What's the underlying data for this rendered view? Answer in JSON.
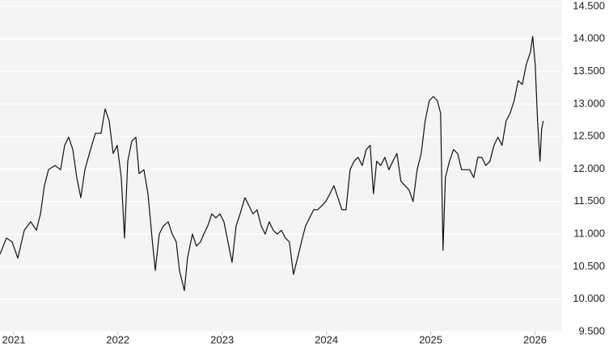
{
  "chart_data": {
    "type": "line",
    "x": [
      2020.87,
      2020.932,
      2020.986,
      2021.041,
      2021.103,
      2021.165,
      2021.219,
      2021.258,
      2021.296,
      2021.335,
      2021.397,
      2021.451,
      2021.49,
      2021.529,
      2021.568,
      2021.606,
      2021.645,
      2021.684,
      2021.738,
      2021.785,
      2021.839,
      2021.878,
      2021.917,
      2021.955,
      2021.994,
      2022.033,
      2022.064,
      2022.095,
      2022.134,
      2022.173,
      2022.204,
      2022.25,
      2022.289,
      2022.328,
      2022.359,
      2022.397,
      2022.436,
      2022.483,
      2022.521,
      2022.56,
      2022.591,
      2022.638,
      2022.668,
      2022.715,
      2022.754,
      2022.793,
      2022.824,
      2022.862,
      2022.901,
      2022.94,
      2022.979,
      2023.017,
      2023.056,
      2023.095,
      2023.134,
      2023.172,
      2023.219,
      2023.258,
      2023.296,
      2023.335,
      2023.374,
      2023.413,
      2023.451,
      2023.49,
      2023.529,
      2023.568,
      2023.606,
      2023.645,
      2023.684,
      2023.723,
      2023.761,
      2023.8,
      2023.839,
      2023.878,
      2023.917,
      2023.955,
      2023.994,
      2024.033,
      2024.072,
      2024.11,
      2024.149,
      2024.188,
      2024.227,
      2024.265,
      2024.304,
      2024.343,
      2024.382,
      2024.42,
      2024.451,
      2024.482,
      2024.521,
      2024.56,
      2024.599,
      2024.637,
      2024.676,
      2024.715,
      2024.754,
      2024.792,
      2024.831,
      2024.87,
      2024.909,
      2024.947,
      2024.986,
      2025.025,
      2025.064,
      2025.095,
      2025.118,
      2025.141,
      2025.18,
      2025.219,
      2025.258,
      2025.296,
      2025.335,
      2025.374,
      2025.413,
      2025.452,
      2025.49,
      2025.529,
      2025.568,
      2025.607,
      2025.645,
      2025.684,
      2025.723,
      2025.762,
      2025.8,
      2025.839,
      2025.878,
      2025.917,
      2025.955,
      2025.978,
      2026.002,
      2026.025,
      2026.048,
      2026.064,
      2026.079
    ],
    "series": [
      {
        "color": "#111111",
        "values": [
          10690,
          10940,
          10880,
          10630,
          11060,
          11190,
          11060,
          11310,
          11745,
          11990,
          12055,
          11990,
          12365,
          12490,
          12300,
          11870,
          11560,
          11990,
          12300,
          12550,
          12550,
          12925,
          12740,
          12240,
          12365,
          11870,
          10940,
          12120,
          12430,
          12490,
          11930,
          11990,
          11620,
          10940,
          10440,
          11000,
          11125,
          11190,
          11000,
          10880,
          10440,
          10130,
          10630,
          11000,
          10815,
          10880,
          11000,
          11125,
          11310,
          11250,
          11310,
          11190,
          10880,
          10565,
          11125,
          11310,
          11560,
          11435,
          11310,
          11375,
          11125,
          11000,
          11190,
          11060,
          11000,
          11060,
          10940,
          10880,
          10380,
          10630,
          10880,
          11125,
          11250,
          11375,
          11375,
          11435,
          11500,
          11620,
          11745,
          11560,
          11375,
          11375,
          11990,
          12120,
          12180,
          12055,
          12300,
          12365,
          11620,
          12120,
          12055,
          12180,
          11990,
          12120,
          12240,
          11810,
          11745,
          11680,
          11500,
          11990,
          12240,
          12740,
          13050,
          13115,
          13050,
          12860,
          10750,
          11870,
          12120,
          12300,
          12240,
          11990,
          11990,
          11990,
          11870,
          12180,
          12180,
          12055,
          12120,
          12365,
          12490,
          12365,
          12740,
          12860,
          13050,
          13360,
          13300,
          13610,
          13790,
          14040,
          13610,
          12740,
          12120,
          12615,
          12740
        ]
      }
    ],
    "xlim": [
      2020.87,
      2026.26
    ],
    "xticks": [
      2021,
      2022,
      2023,
      2024,
      2025,
      2026
    ],
    "ylim": [
      9500,
      14500
    ],
    "yticks": [
      {
        "value": 9500,
        "label": "9.500"
      },
      {
        "value": 10000,
        "label": "10.000"
      },
      {
        "value": 10500,
        "label": "10.500"
      },
      {
        "value": 11000,
        "label": "11.000"
      },
      {
        "value": 11500,
        "label": "11.500"
      },
      {
        "value": 12000,
        "label": "12.000"
      },
      {
        "value": 12500,
        "label": "12.500"
      },
      {
        "value": 13000,
        "label": "13.000"
      },
      {
        "value": 13500,
        "label": "13.500"
      },
      {
        "value": 14000,
        "label": "14.000"
      },
      {
        "value": 14500,
        "label": "14.500"
      }
    ],
    "grid": true
  }
}
